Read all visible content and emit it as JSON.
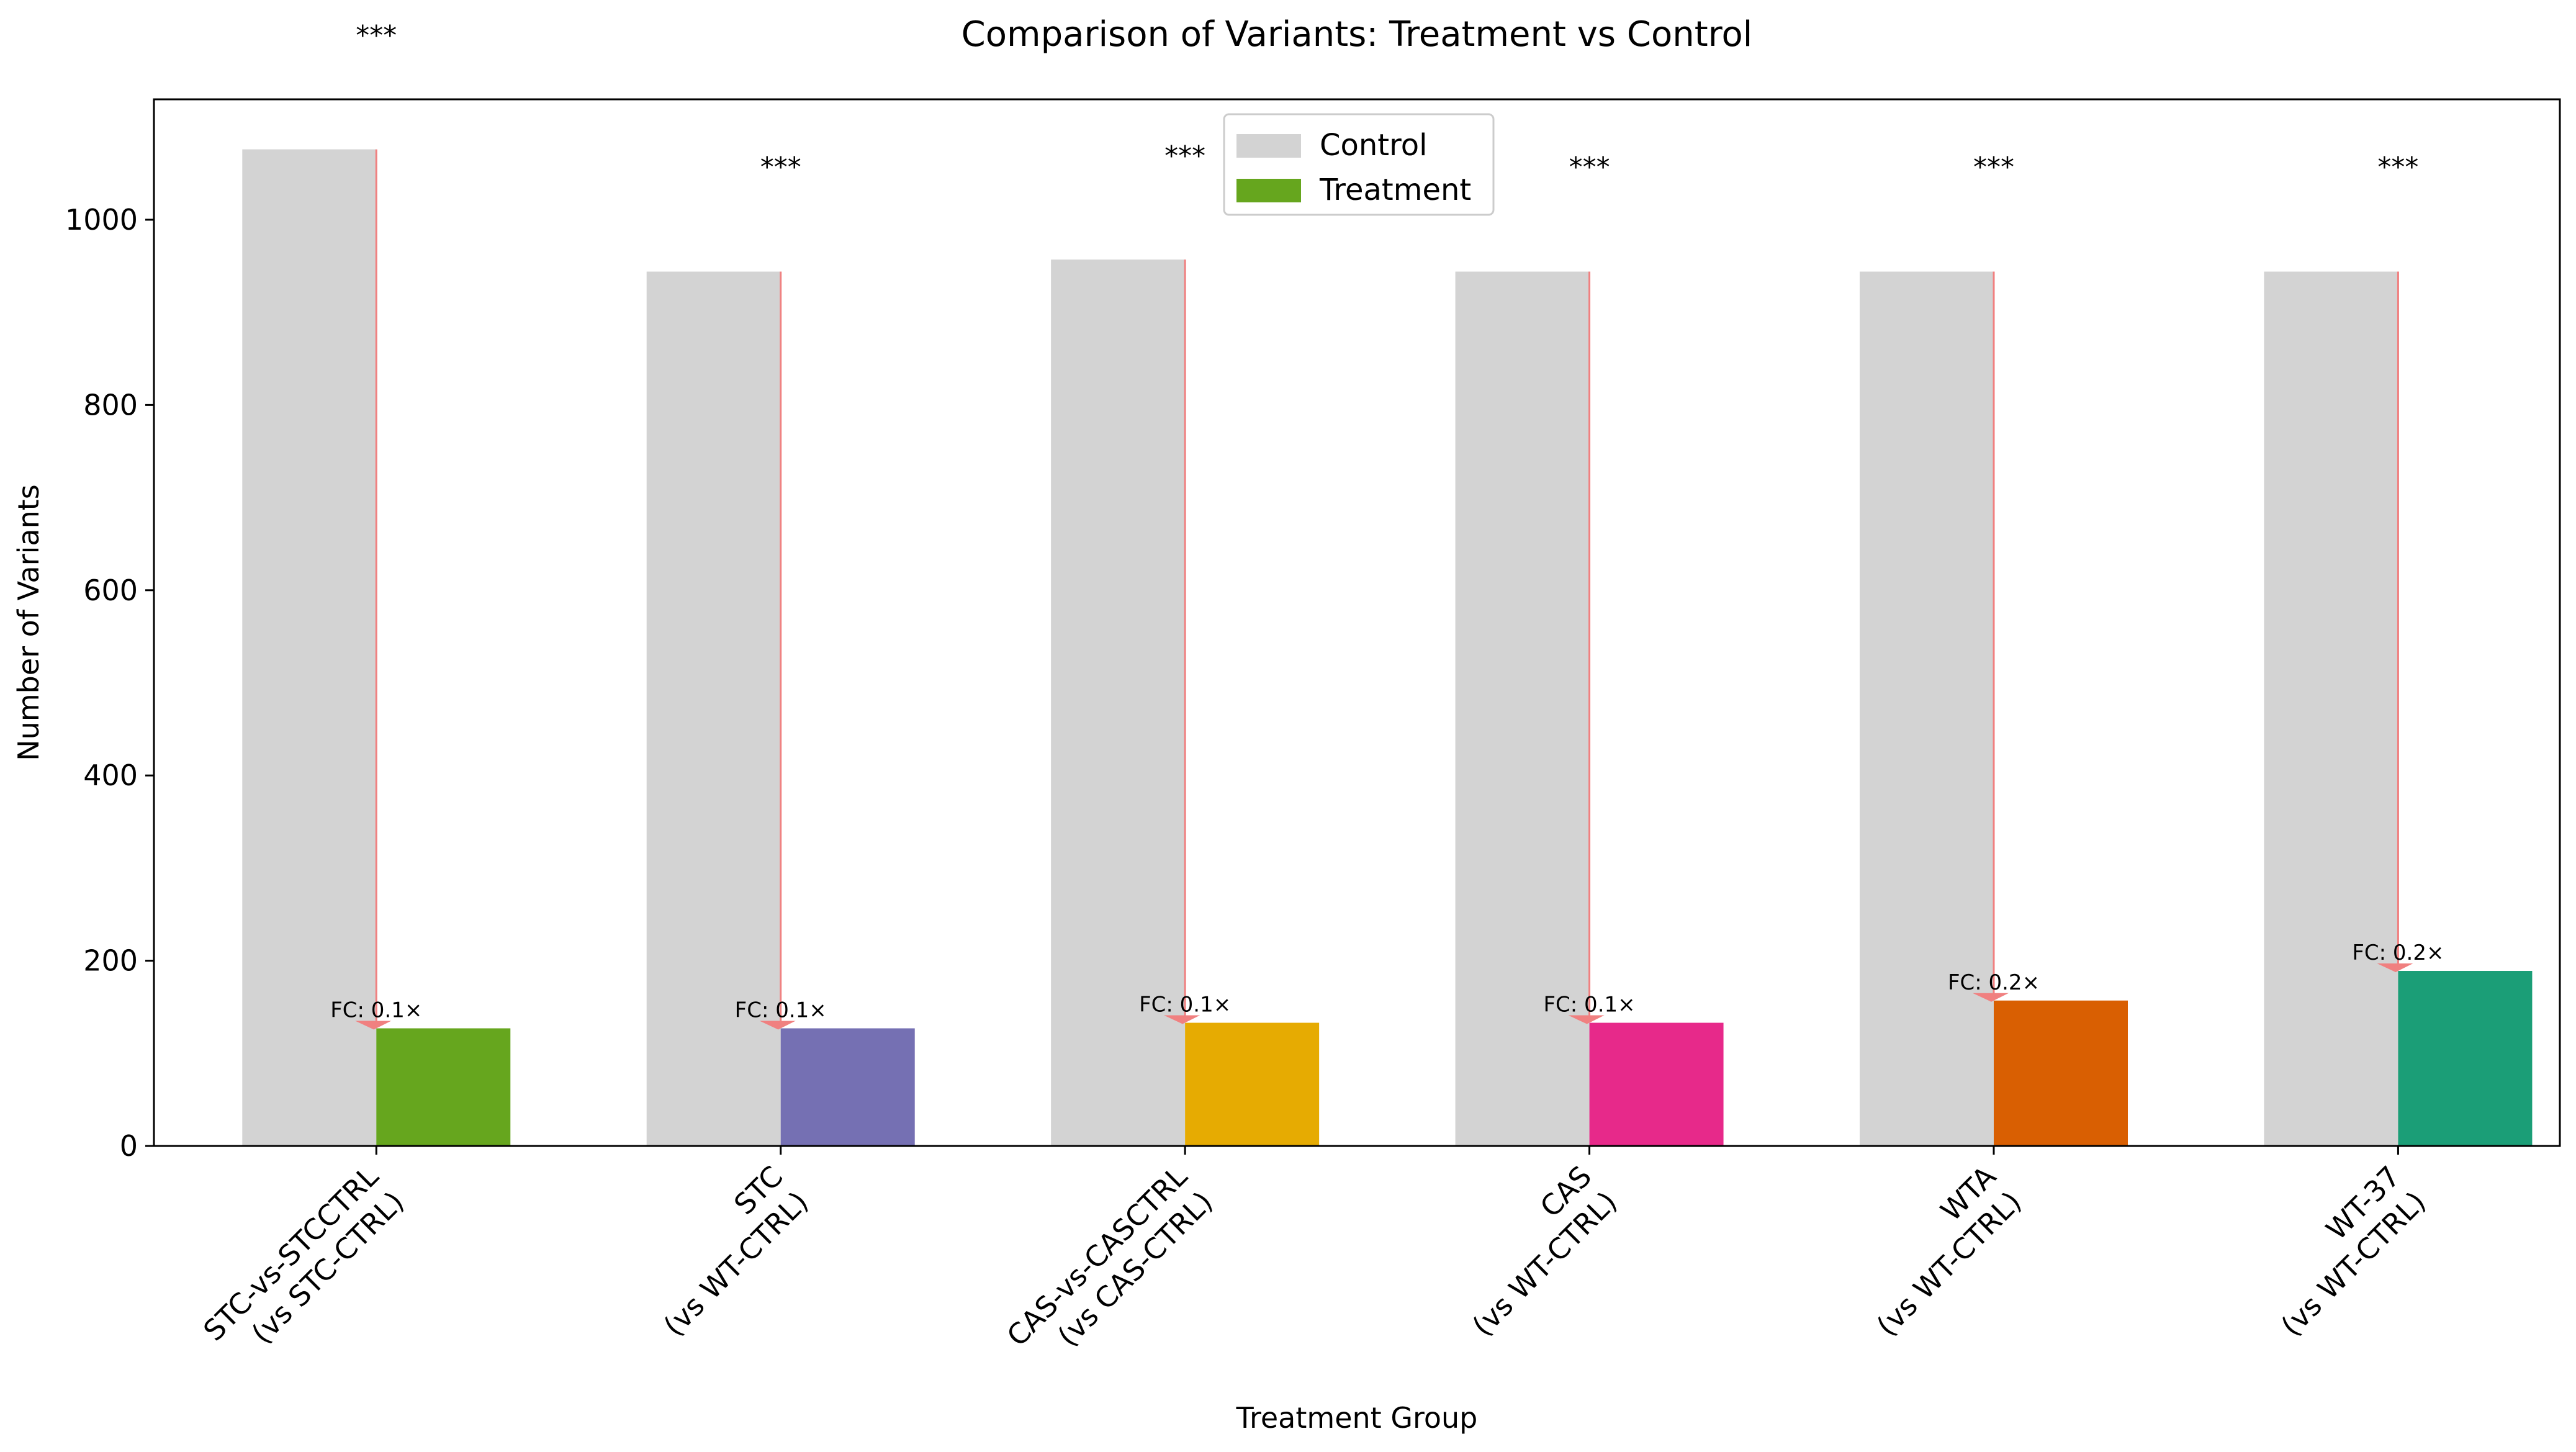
{
  "chart_data": {
    "type": "bar",
    "title": "Comparison of Variants: Treatment vs Control",
    "xlabel": "Treatment Group",
    "ylabel": "Number of Variants",
    "ylim": [
      0,
      1130
    ],
    "yticks": [
      0,
      200,
      400,
      600,
      800,
      1000
    ],
    "categories": [
      [
        "STC-vs-STCCTRL",
        "(vs STC-CTRL)"
      ],
      [
        "STC",
        "(vs WT-CTRL)"
      ],
      [
        "CAS-vs-CASCTRL",
        "(vs CAS-CTRL)"
      ],
      [
        "CAS",
        "(vs WT-CTRL)"
      ],
      [
        "WTA",
        "(vs WT-CTRL)"
      ],
      [
        "WT-37",
        "(vs WT-CTRL)"
      ]
    ],
    "series": [
      {
        "name": "Control",
        "color": "#d3d3d3",
        "values": [
          1076,
          944,
          957,
          944,
          944,
          944
        ]
      },
      {
        "name": "Treatment",
        "color": "#66a61e",
        "bar_colors": [
          "#66a61e",
          "#7570b3",
          "#e6ab02",
          "#e7298a",
          "#d95f02",
          "#1b9e77"
        ],
        "values": [
          127,
          127,
          133,
          133,
          157,
          189
        ]
      }
    ],
    "fold_change_labels": [
      "FC: 0.1×",
      "FC: 0.1×",
      "FC: 0.1×",
      "FC: 0.1×",
      "FC: 0.2×",
      "FC: 0.2×"
    ],
    "significance_labels": [
      "***",
      "***",
      "***",
      "***",
      "***",
      "***"
    ],
    "arrow_color": "#f08080",
    "legend": {
      "placement": "top-center",
      "entries": [
        "Control",
        "Treatment"
      ]
    },
    "grid": false
  }
}
